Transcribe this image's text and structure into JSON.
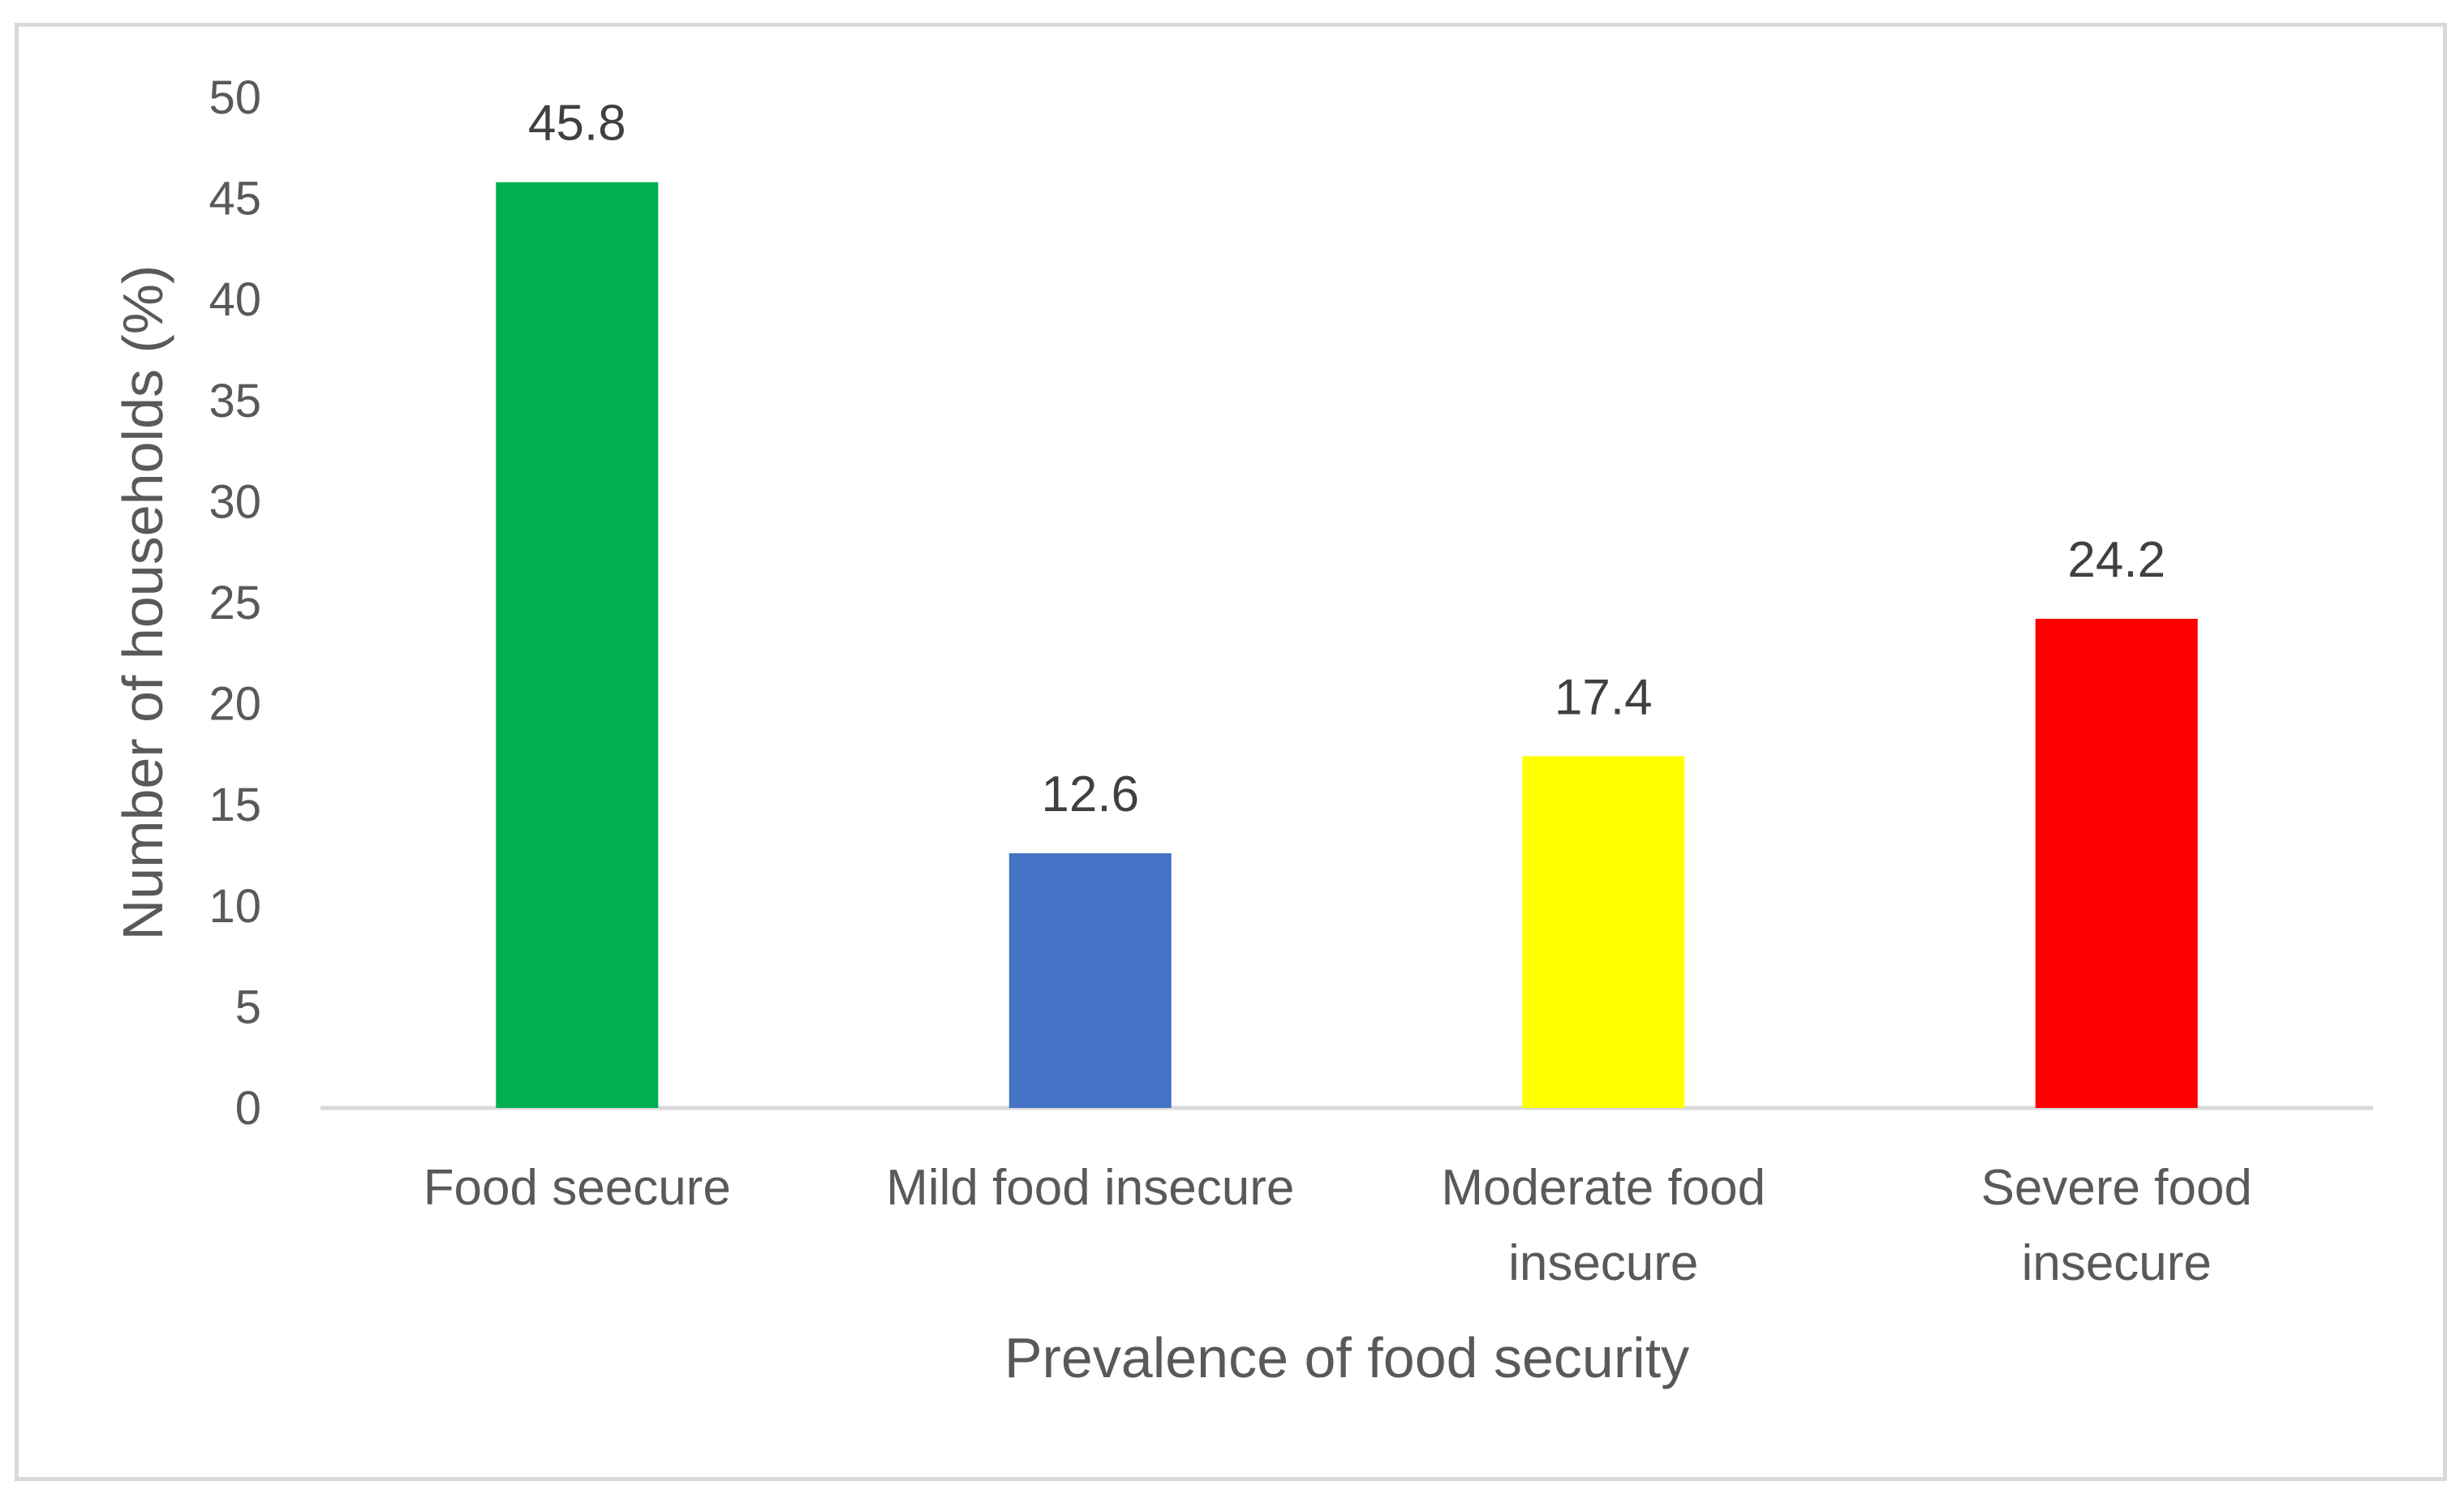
{
  "chart_data": {
    "type": "bar",
    "categories": [
      [
        "Food seecure"
      ],
      [
        "Mild food insecure"
      ],
      [
        "Moderate food",
        "insecure"
      ],
      [
        "Severe food",
        "insecure"
      ]
    ],
    "values": [
      45.8,
      12.6,
      17.4,
      24.2
    ],
    "data_labels": [
      "45.8",
      "12.6",
      "17.4",
      "24.2"
    ],
    "colors": [
      "#00b050",
      "#4472c4",
      "#ffff00",
      "#ff0000"
    ],
    "xlabel": "Prevalence of food security",
    "ylabel": "Number of households (%)",
    "ylim": [
      0,
      50
    ],
    "yticks": [
      0,
      5,
      10,
      15,
      20,
      25,
      30,
      35,
      40,
      45,
      50
    ],
    "grid": false,
    "legend": "none"
  }
}
